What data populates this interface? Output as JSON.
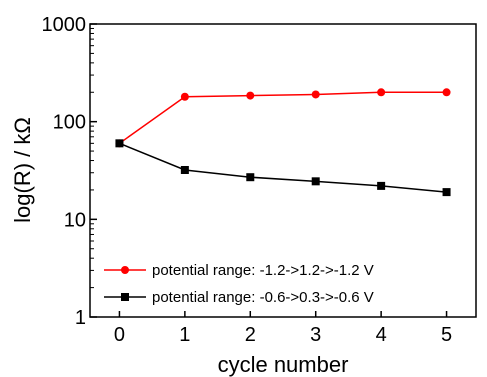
{
  "chart_data": {
    "type": "line",
    "title": "",
    "xlabel": "cycle number",
    "ylabel": "log(R) / kΩ",
    "x": [
      0,
      1,
      2,
      3,
      4,
      5
    ],
    "xticks": [
      0,
      1,
      2,
      3,
      4,
      5
    ],
    "xlim": [
      -0.45,
      5.45
    ],
    "ylim": [
      1,
      1000
    ],
    "yscale": "log",
    "yticks": [
      1,
      10,
      100,
      1000
    ],
    "grid": false,
    "legend_position": "bottom-left",
    "series": [
      {
        "name": "potential range: -1.2->1.2->-1.2 V",
        "color": "#ff0000",
        "marker": "circle",
        "values": [
          60,
          180,
          185,
          190,
          200,
          200
        ]
      },
      {
        "name": "potential range: -0.6->0.3->-0.6 V",
        "color": "#000000",
        "marker": "square",
        "values": [
          60,
          32,
          27,
          24.5,
          22,
          19
        ]
      }
    ]
  }
}
